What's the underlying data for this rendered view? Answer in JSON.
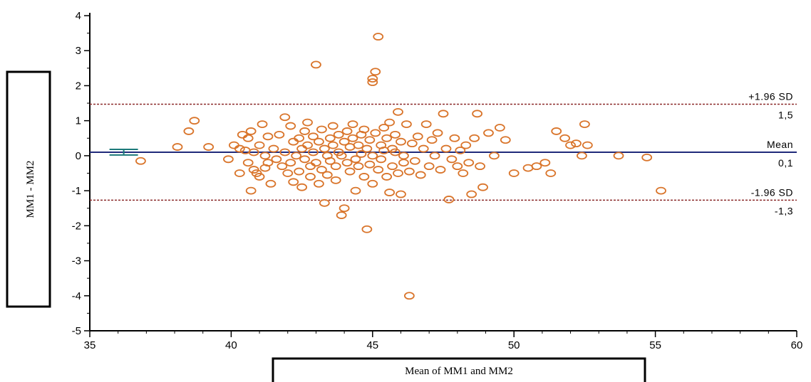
{
  "chart_data": {
    "type": "scatter",
    "title": "",
    "xlabel": "Mean of MM1 and MM2",
    "ylabel": "MM1 - MM2",
    "xlim": [
      35,
      60
    ],
    "ylim": [
      -5,
      4
    ],
    "x_ticks": [
      "35",
      "40",
      "45",
      "50",
      "55",
      "60"
    ],
    "y_ticks": [
      "4",
      "3",
      "2",
      "1",
      "0",
      "-1",
      "-2",
      "-3",
      "-4",
      "-5"
    ],
    "grid": false,
    "colors": {
      "points": "#d9742a",
      "mean_line": "#1f2a7a",
      "limit_lines": "#8b2a2a",
      "mean_ci": "#1c7a7a"
    },
    "reference_lines": [
      {
        "name": "upper_loa",
        "value": 1.47,
        "label_top": "+1.96 SD",
        "label_bottom": "1,5"
      },
      {
        "name": "mean",
        "value": 0.1,
        "label_top": "Mean",
        "label_bottom": "0,1"
      },
      {
        "name": "lower_loa",
        "value": -1.27,
        "label_top": "-1.96 SD",
        "label_bottom": "-1,3"
      }
    ],
    "mean_ci": {
      "x": 36.2,
      "low": 0.02,
      "high": 0.18
    },
    "points": [
      [
        36.8,
        -0.15
      ],
      [
        38.1,
        0.25
      ],
      [
        38.5,
        0.7
      ],
      [
        38.7,
        1.0
      ],
      [
        39.2,
        0.25
      ],
      [
        39.9,
        -0.1
      ],
      [
        40.1,
        0.3
      ],
      [
        40.3,
        0.2
      ],
      [
        40.3,
        -0.5
      ],
      [
        40.4,
        0.6
      ],
      [
        40.5,
        0.15
      ],
      [
        40.6,
        0.5
      ],
      [
        40.6,
        -0.2
      ],
      [
        40.7,
        0.7
      ],
      [
        40.7,
        -1.0
      ],
      [
        40.8,
        0.1
      ],
      [
        40.8,
        -0.4
      ],
      [
        40.9,
        -0.5
      ],
      [
        41.0,
        0.3
      ],
      [
        41.0,
        -0.6
      ],
      [
        41.1,
        0.9
      ],
      [
        41.2,
        0.0
      ],
      [
        41.2,
        -0.35
      ],
      [
        41.3,
        0.55
      ],
      [
        41.3,
        -0.2
      ],
      [
        41.4,
        -0.8
      ],
      [
        41.5,
        0.2
      ],
      [
        41.6,
        -0.1
      ],
      [
        41.7,
        0.6
      ],
      [
        41.8,
        -0.3
      ],
      [
        41.9,
        1.1
      ],
      [
        41.9,
        0.1
      ],
      [
        42.0,
        -0.5
      ],
      [
        42.1,
        0.85
      ],
      [
        42.1,
        -0.2
      ],
      [
        42.2,
        0.4
      ],
      [
        42.2,
        -0.75
      ],
      [
        42.3,
        0.0
      ],
      [
        42.4,
        0.5
      ],
      [
        42.4,
        -0.45
      ],
      [
        42.5,
        0.2
      ],
      [
        42.5,
        -0.9
      ],
      [
        42.6,
        0.7
      ],
      [
        42.6,
        -0.1
      ],
      [
        42.7,
        0.95
      ],
      [
        42.7,
        0.3
      ],
      [
        42.8,
        -0.3
      ],
      [
        42.8,
        -0.6
      ],
      [
        42.9,
        0.55
      ],
      [
        42.9,
        0.1
      ],
      [
        43.0,
        2.6
      ],
      [
        43.0,
        -0.2
      ],
      [
        43.1,
        0.4
      ],
      [
        43.1,
        -0.8
      ],
      [
        43.2,
        0.75
      ],
      [
        43.2,
        -0.4
      ],
      [
        43.3,
        -1.35
      ],
      [
        43.3,
        0.2
      ],
      [
        43.4,
        0.0
      ],
      [
        43.4,
        -0.55
      ],
      [
        43.5,
        0.5
      ],
      [
        43.5,
        -0.15
      ],
      [
        43.6,
        0.85
      ],
      [
        43.6,
        0.3
      ],
      [
        43.7,
        -0.3
      ],
      [
        43.7,
        -0.7
      ],
      [
        43.8,
        0.6
      ],
      [
        43.8,
        0.1
      ],
      [
        43.9,
        -1.7
      ],
      [
        43.9,
        0.0
      ],
      [
        44.0,
        -1.5
      ],
      [
        44.0,
        0.4
      ],
      [
        44.1,
        0.7
      ],
      [
        44.1,
        -0.2
      ],
      [
        44.2,
        0.25
      ],
      [
        44.2,
        -0.45
      ],
      [
        44.3,
        0.9
      ],
      [
        44.3,
        0.5
      ],
      [
        44.4,
        -0.1
      ],
      [
        44.4,
        -1.0
      ],
      [
        44.5,
        0.3
      ],
      [
        44.5,
        -0.3
      ],
      [
        44.6,
        0.6
      ],
      [
        44.6,
        0.05
      ],
      [
        44.7,
        0.75
      ],
      [
        44.7,
        -0.6
      ],
      [
        44.8,
        -2.1
      ],
      [
        44.8,
        0.2
      ],
      [
        44.9,
        -0.25
      ],
      [
        44.9,
        0.45
      ],
      [
        45.0,
        2.1
      ],
      [
        45.0,
        2.2
      ],
      [
        45.0,
        0.0
      ],
      [
        45.0,
        -0.8
      ],
      [
        45.1,
        2.4
      ],
      [
        45.1,
        0.65
      ],
      [
        45.2,
        3.4
      ],
      [
        45.2,
        -0.4
      ],
      [
        45.3,
        0.3
      ],
      [
        45.3,
        -0.1
      ],
      [
        45.4,
        0.8
      ],
      [
        45.4,
        0.15
      ],
      [
        45.5,
        -0.6
      ],
      [
        45.5,
        0.5
      ],
      [
        45.6,
        0.95
      ],
      [
        45.6,
        -1.05
      ],
      [
        45.7,
        0.2
      ],
      [
        45.7,
        -0.3
      ],
      [
        45.8,
        0.6
      ],
      [
        45.8,
        0.1
      ],
      [
        45.9,
        1.25
      ],
      [
        45.9,
        -0.5
      ],
      [
        46.0,
        0.4
      ],
      [
        46.0,
        -1.1
      ],
      [
        46.1,
        0.0
      ],
      [
        46.1,
        -0.2
      ],
      [
        46.2,
        0.9
      ],
      [
        46.3,
        -4.0
      ],
      [
        46.3,
        -0.45
      ],
      [
        46.4,
        0.35
      ],
      [
        46.5,
        -0.15
      ],
      [
        46.6,
        0.55
      ],
      [
        46.7,
        -0.55
      ],
      [
        46.8,
        0.2
      ],
      [
        46.9,
        0.9
      ],
      [
        47.0,
        -0.3
      ],
      [
        47.1,
        0.45
      ],
      [
        47.2,
        0.0
      ],
      [
        47.3,
        0.65
      ],
      [
        47.4,
        -0.4
      ],
      [
        47.5,
        1.2
      ],
      [
        47.6,
        0.2
      ],
      [
        47.7,
        -1.25
      ],
      [
        47.8,
        -0.1
      ],
      [
        47.9,
        0.5
      ],
      [
        48.0,
        -0.3
      ],
      [
        48.1,
        0.15
      ],
      [
        48.2,
        -0.5
      ],
      [
        48.3,
        0.3
      ],
      [
        48.4,
        -0.2
      ],
      [
        48.5,
        -1.1
      ],
      [
        48.6,
        0.5
      ],
      [
        48.7,
        1.2
      ],
      [
        48.8,
        -0.3
      ],
      [
        48.9,
        -0.9
      ],
      [
        49.1,
        0.65
      ],
      [
        49.3,
        0.0
      ],
      [
        49.5,
        0.8
      ],
      [
        49.7,
        0.45
      ],
      [
        50.0,
        -0.5
      ],
      [
        50.5,
        -0.35
      ],
      [
        50.8,
        -0.3
      ],
      [
        51.1,
        -0.2
      ],
      [
        51.3,
        -0.5
      ],
      [
        51.5,
        0.7
      ],
      [
        51.8,
        0.5
      ],
      [
        52.0,
        0.3
      ],
      [
        52.2,
        0.35
      ],
      [
        52.4,
        0.0
      ],
      [
        52.5,
        0.9
      ],
      [
        52.6,
        0.3
      ],
      [
        53.7,
        0.0
      ],
      [
        54.7,
        -0.05
      ],
      [
        55.2,
        -1.0
      ]
    ]
  }
}
